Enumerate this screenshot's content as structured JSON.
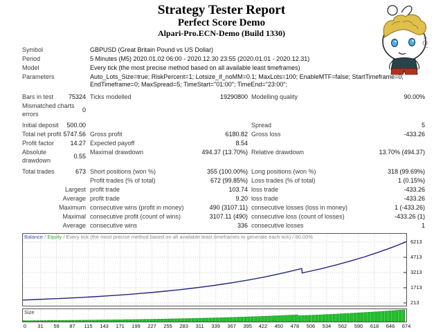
{
  "header": {
    "title": "Strategy Tester Report",
    "subtitle": "Perfect Score Demo",
    "server": "Alpari-Pro.ECN-Demo (Build 1330)"
  },
  "info": {
    "rows": [
      {
        "label": "Symbol",
        "value": "GBPUSD (Great Britain Pound vs US Dollar)"
      },
      {
        "label": "Period",
        "value": "5 Minutes (M5) 2020.01.02 06:00 - 2020.12.30 23:55 (2020.01.01 - 2020.12.31)"
      },
      {
        "label": "Model",
        "value": "Every tick (the most precise method based on all available least timeframes)"
      },
      {
        "label": "Parameters",
        "value": "Auto_Lots_Size=true; RiskPercent=1; Lotsize_if_noMM=0.1; MaxLots=100; EnableMTF=false; StartTimeframe=0; EndTimeframe=0; MaxSpread=5; TimeStart=\"01:00\"; TimeEnd=\"23:00\";"
      }
    ]
  },
  "stats": {
    "rows": [
      {
        "c1": "Bars in test",
        "c2": "75324",
        "c3": "Ticks modelled",
        "c4": "19290800",
        "c5": "Modelling quality",
        "c6": "90.00%"
      },
      {
        "c1": "Mismatched charts errors",
        "c2": "0"
      },
      {
        "c1": "Initial deposit",
        "c2": "500.00",
        "c5": "Spread",
        "c6": "5"
      },
      {
        "c1": "Total net profit",
        "c2": "5747.56",
        "c3": "Gross profit",
        "c4": "6180.82",
        "c5": "Gross loss",
        "c6": "-433.26"
      },
      {
        "c1": "Profit factor",
        "c2": "14.27",
        "c3": "Expected payoff",
        "c4": "8.54"
      },
      {
        "c1": "Absolute drawdown",
        "c2": "0.55",
        "c3": "Maximal drawdown",
        "c4": "494.37 (13.70%)",
        "c5": "Relative drawdown",
        "c6": "13.70% (494.37)"
      },
      {
        "c1": "Total trades",
        "c2": "673",
        "c3": "Short positions (won %)",
        "c4": "355 (100.00%)",
        "c5": "Long positions (won %)",
        "c6": "318 (99.69%)"
      },
      {
        "c3": "Profit trades (% of total)",
        "c4": "672 (99.85%)",
        "c5": "Loss trades (% of total)",
        "c6": "1 (0.15%)"
      },
      {
        "c1": "Largest",
        "c3": "profit trade",
        "c4": "103.74",
        "c5": "loss trade",
        "c6": "-433.26"
      },
      {
        "c1": "Average",
        "c3": "profit trade",
        "c4": "9.20",
        "c5": "loss trade",
        "c6": "-433.26"
      },
      {
        "c1": "Maximum",
        "c3": "consecutive wins (profit in money)",
        "c4": "490 (3107.11)",
        "c5": "consecutive losses (loss in money)",
        "c6": "1 (-433.26)"
      },
      {
        "c1": "Maximal",
        "c3": "consecutive profit (count of wins)",
        "c4": "3107.11 (490)",
        "c5": "consecutive loss (count of losses)",
        "c6": "-433.26 (1)"
      },
      {
        "c1": "Average",
        "c3": "consecutive wins",
        "c4": "336",
        "c5": "consecutive losses",
        "c6": "1"
      }
    ]
  },
  "chart": {
    "caption": {
      "balance": "Balance",
      "sep1": " / ",
      "equity": "Equity",
      "sep2": " / ",
      "tail": "Every tick (the most precise method based on all available least timeframes to generate each tick) / 90.00%"
    },
    "size_label": "Size"
  },
  "chart_data": {
    "type": "line+bar",
    "title": "Balance curve and trade size",
    "x_range": [
      0,
      674
    ],
    "y_range": [
      213,
      7100
    ],
    "x_ticks": [
      0,
      31,
      59,
      87,
      115,
      143,
      171,
      199,
      227,
      255,
      283,
      311,
      339,
      367,
      395,
      422,
      450,
      478,
      506,
      534,
      562,
      590,
      618,
      646,
      674
    ],
    "y_ticks": [
      6213,
      4713,
      3213,
      1713,
      213
    ],
    "grid": true,
    "series": [
      {
        "name": "Balance",
        "color": "#23237d",
        "points": [
          [
            0,
            500
          ],
          [
            25,
            553
          ],
          [
            50,
            612
          ],
          [
            75,
            677
          ],
          [
            100,
            748
          ],
          [
            125,
            828
          ],
          [
            150,
            916
          ],
          [
            175,
            1013
          ],
          [
            200,
            1120
          ],
          [
            225,
            1239
          ],
          [
            250,
            1371
          ],
          [
            275,
            1516
          ],
          [
            300,
            1677
          ],
          [
            325,
            1855
          ],
          [
            350,
            2052
          ],
          [
            375,
            2270
          ],
          [
            400,
            2511
          ],
          [
            425,
            2777
          ],
          [
            450,
            3072
          ],
          [
            475,
            3398
          ],
          [
            490,
            3607
          ],
          [
            491,
            3174
          ],
          [
            500,
            3280
          ],
          [
            525,
            3598
          ],
          [
            550,
            3946
          ],
          [
            575,
            4329
          ],
          [
            600,
            4748
          ],
          [
            625,
            5208
          ],
          [
            650,
            5713
          ],
          [
            674,
            6248
          ]
        ]
      }
    ],
    "size_bars": {
      "name": "Size",
      "color": "#1fc32b",
      "border": "#0f9418",
      "max": 6248,
      "values": [
        500,
        513,
        526,
        539,
        553,
        567,
        581,
        596,
        611,
        626,
        642,
        658,
        675,
        692,
        709,
        727,
        745,
        764,
        783,
        803,
        823,
        844,
        865,
        887,
        909,
        932,
        956,
        980,
        1005,
        1030,
        1056,
        1083,
        1110,
        1138,
        1167,
        1196,
        1226,
        1257,
        1289,
        1322,
        1355,
        1389,
        1424,
        1460,
        1497,
        1535,
        1574,
        1614,
        1655,
        1697,
        1740,
        1784,
        1829,
        1875,
        1922,
        1971,
        2021,
        2072,
        2124,
        2178,
        2233,
        2289,
        2347,
        2406,
        2467,
        2529,
        2593,
        2658,
        2725,
        2794,
        2865,
        2937,
        3011,
        3087,
        3165,
        3245,
        3327,
        3411,
        3497,
        3585,
        3155,
        3228,
        3303,
        3379,
        3457,
        3537,
        3619,
        3703,
        3789,
        3877,
        3967,
        4059,
        4153,
        4249,
        4347,
        4448,
        4551,
        4656,
        4764,
        4874,
        4987,
        5102,
        5220,
        5341,
        5465,
        5591,
        5720,
        5852,
        5987,
        6125,
        6248
      ]
    }
  }
}
